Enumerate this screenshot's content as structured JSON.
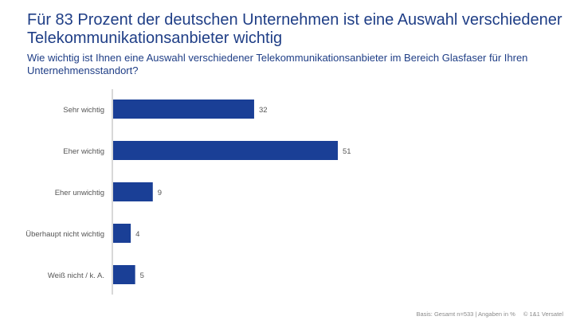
{
  "title": "Für 83 Prozent der deutschen Unternehmen ist eine Auswahl verschiedener Telekommunikationsanbieter wichtig",
  "subtitle": "Wie wichtig ist Ihnen eine Auswahl verschiedener Telekommunikationsanbieter im Bereich Glasfaser für Ihren Unternehmensstandort?",
  "footer": {
    "basis": "Basis: Gesamt n=533 | Angaben in %",
    "copyright": "© 1&1 Versatel"
  },
  "chart_data": {
    "type": "bar",
    "orientation": "horizontal",
    "categories": [
      "Sehr wichtig",
      "Eher wichtig",
      "Eher unwichtig",
      "Überhaupt nicht wichtig",
      "Weiß nicht / k. A."
    ],
    "values": [
      32,
      51,
      9,
      4,
      5
    ],
    "unit": "%",
    "bar_color": "#1a3f96",
    "grid": false
  }
}
